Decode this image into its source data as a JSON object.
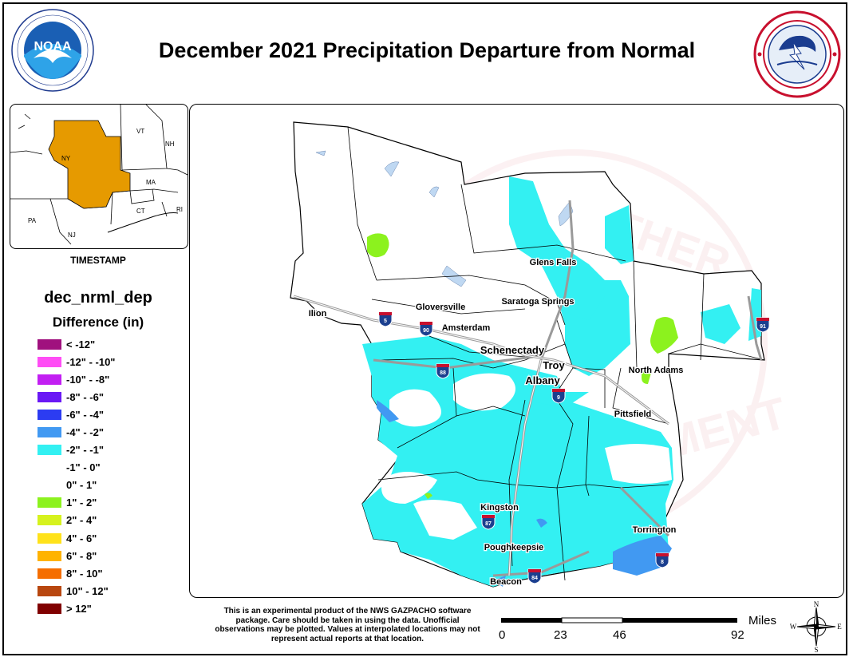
{
  "title": "December 2021 Precipitation Departure from Normal",
  "inset": {
    "timestamp": "TIMESTAMP",
    "states": [
      "NY",
      "VT",
      "NH",
      "MA",
      "CT",
      "RI",
      "PA",
      "NJ"
    ],
    "highlight_color": "#E69A00"
  },
  "legend": {
    "title": "dec_nrml_dep",
    "subtitle": "Difference (in)",
    "items": [
      {
        "label": "< -12\"",
        "color": "#A0117E"
      },
      {
        "label": "-12\" - -10\"",
        "color": "#FF4DF5"
      },
      {
        "label": "-10\" - -8\"",
        "color": "#C21FF2"
      },
      {
        "label": "-8\" - -6\"",
        "color": "#6A18F5"
      },
      {
        "label": "-6\" - -4\"",
        "color": "#2C3CF2"
      },
      {
        "label": "-4\" - -2\"",
        "color": "#4199F2"
      },
      {
        "label": "-2\" - -1\"",
        "color": "#33F0F2"
      },
      {
        "label": "-1\" - 0\"",
        "color": "#FFFFFF"
      },
      {
        "label": "0\" - 1\"",
        "color": "#FFFFFF"
      },
      {
        "label": "1\" - 2\"",
        "color": "#8CF21E"
      },
      {
        "label": "2\" - 4\"",
        "color": "#D6F21E"
      },
      {
        "label": "4\" - 6\"",
        "color": "#FFE21A"
      },
      {
        "label": "6\" - 8\"",
        "color": "#FFB300"
      },
      {
        "label": "8\" - 10\"",
        "color": "#F56E00"
      },
      {
        "label": "10\" - 12\"",
        "color": "#B8470F"
      },
      {
        "label": "> 12\"",
        "color": "#800000"
      }
    ]
  },
  "map": {
    "cities": [
      "Glens Falls",
      "Saratoga Springs",
      "Gloversville",
      "Ilion",
      "Amsterdam",
      "Schenectady",
      "Troy",
      "Albany",
      "North Adams",
      "Pittsfield",
      "Kingston",
      "Poughkeepsie",
      "Beacon",
      "Torrington"
    ],
    "shields": [
      "5",
      "90",
      "88",
      "9",
      "91",
      "87",
      "84",
      "8"
    ]
  },
  "disclaimer": "This is an experimental product of the NWS GAZPACHO software package. Care should be taken in using the data. Unofficial observations may be plotted. Values at interpolated locations may not represent actual reports at that location.",
  "scale": {
    "unit": "Miles",
    "ticks": [
      "0",
      "23",
      "46",
      "92"
    ]
  },
  "compass": [
    "N",
    "E",
    "S",
    "W"
  ],
  "noaa_text": "NOAA",
  "colors": {
    "cyan": "#33F0F2",
    "blue": "#4199F2",
    "green": "#8CF21E",
    "lake": "#BFD8F2"
  }
}
